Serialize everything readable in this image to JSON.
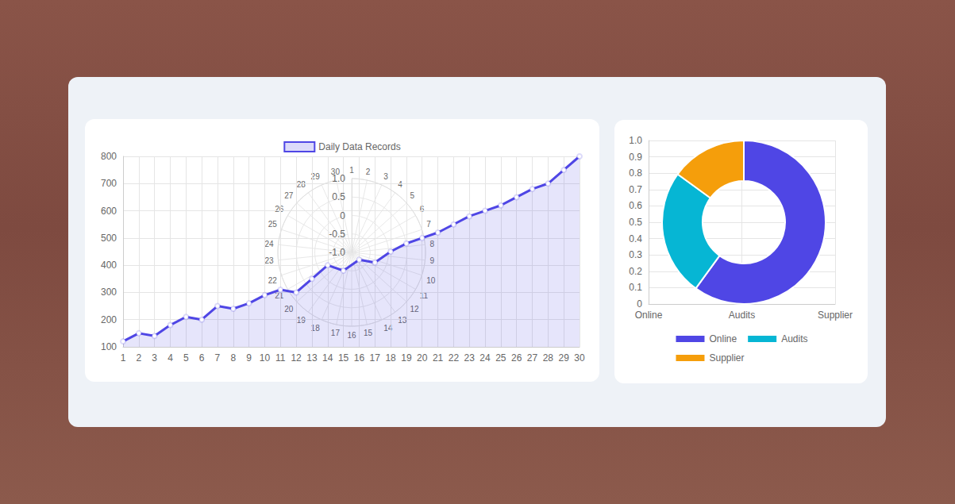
{
  "chart_data": [
    {
      "type": "area",
      "categories": [
        1,
        2,
        3,
        4,
        5,
        6,
        7,
        8,
        9,
        10,
        11,
        12,
        13,
        14,
        15,
        16,
        17,
        18,
        19,
        20,
        21,
        22,
        23,
        24,
        25,
        26,
        27,
        28,
        29,
        30
      ],
      "series": [
        {
          "name": "Daily Data Records",
          "color": "#4f46e5",
          "values": [
            120,
            150,
            140,
            180,
            210,
            200,
            250,
            240,
            260,
            290,
            310,
            300,
            350,
            400,
            380,
            420,
            410,
            450,
            480,
            500,
            520,
            550,
            580,
            600,
            620,
            650,
            680,
            700,
            750,
            800
          ]
        }
      ],
      "ylim": [
        100,
        800
      ],
      "yticks": [
        100,
        200,
        300,
        400,
        500,
        600,
        700,
        800
      ],
      "grid": true,
      "legend": "top",
      "marker": "circle",
      "line_style": "solid"
    },
    {
      "type": "polar",
      "categories": [
        1,
        2,
        3,
        4,
        5,
        6,
        7,
        8,
        9,
        10,
        11,
        12,
        13,
        14,
        15,
        16,
        17,
        18,
        19,
        20,
        21,
        22,
        23,
        24,
        25,
        26,
        27,
        28,
        29,
        30
      ],
      "ylim": [
        -1,
        1
      ],
      "yticks": [
        {
          "value": -1,
          "label": "-1.0"
        },
        {
          "value": -0.5,
          "label": "-0.5"
        },
        0,
        {
          "value": 0.5,
          "label": "0.5"
        },
        {
          "value": 1,
          "label": "1.0"
        }
      ],
      "grid": true
    },
    {
      "type": "pie",
      "categories": [
        "Online",
        "Audits",
        "Supplier"
      ],
      "values": [
        60,
        25,
        15
      ],
      "colors": [
        "#4f46e5",
        "#06b6d4",
        "#f59e0b"
      ],
      "ylim": [
        0,
        1
      ],
      "yticks": [
        0,
        0.1,
        0.2,
        0.3,
        0.4,
        0.5,
        0.6,
        0.7,
        0.8,
        0.9,
        {
          "value": 1,
          "label": "1.0"
        }
      ],
      "grid": true,
      "legend": "bottom"
    }
  ]
}
